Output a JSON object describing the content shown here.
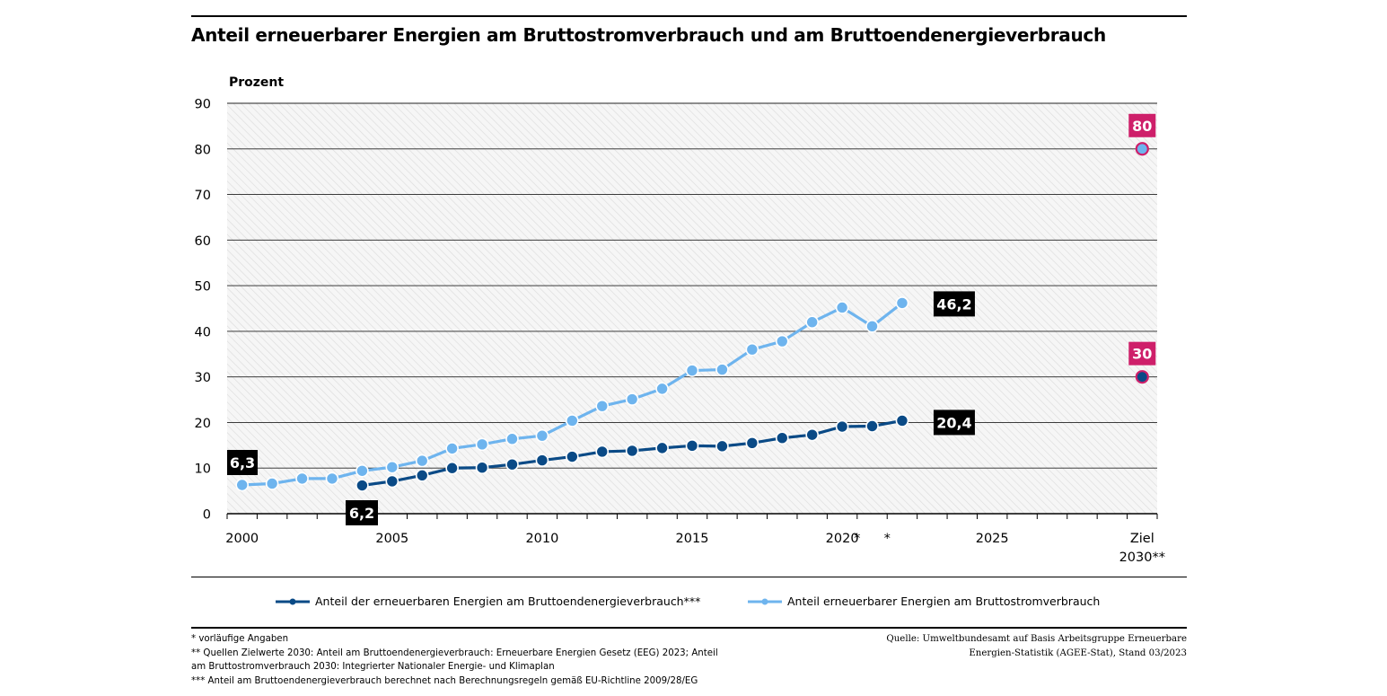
{
  "title": "Anteil erneuerbarer Energien am Bruttostromverbrauch und am Bruttoendenergieverbrauch",
  "colors": {
    "strom": "#6EB4EE",
    "endenergie": "#0A4A86",
    "target": "#CE1F6A",
    "label_box": "#000000"
  },
  "chart_data": {
    "type": "line",
    "ylabel": "Prozent",
    "xlabel": "",
    "ylim": [
      0,
      90
    ],
    "yticks": [
      "0",
      "10",
      "20",
      "30",
      "40",
      "50",
      "60",
      "70",
      "80",
      "90"
    ],
    "x_tick_labels": [
      {
        "x": 2000,
        "label": "2000"
      },
      {
        "x": 2005,
        "label": "2005"
      },
      {
        "x": 2010,
        "label": "2010"
      },
      {
        "x": 2015,
        "label": "2015"
      },
      {
        "x": 2020,
        "label": "2020"
      },
      {
        "x": 2020.5,
        "label": "*"
      },
      {
        "x": 2021.5,
        "label": "*"
      },
      {
        "x": 2025,
        "label": "2025"
      },
      {
        "x": 2030,
        "label": "Ziel\n2030**"
      }
    ],
    "series": [
      {
        "name": "Anteil erneuerbarer Energien am Bruttostromverbrauch",
        "color": "#6EB4EE",
        "x": [
          2000,
          2001,
          2002,
          2003,
          2004,
          2005,
          2006,
          2007,
          2008,
          2009,
          2010,
          2011,
          2012,
          2013,
          2014,
          2015,
          2016,
          2017,
          2018,
          2019,
          2020,
          2021,
          2022
        ],
        "y": [
          6.3,
          6.6,
          7.7,
          7.7,
          9.4,
          10.2,
          11.6,
          14.3,
          15.2,
          16.4,
          17.1,
          20.4,
          23.6,
          25.1,
          27.4,
          31.4,
          31.6,
          36.0,
          37.8,
          42.0,
          45.2,
          41.1,
          46.2
        ],
        "end_label": "46,2",
        "start_label": "6,3"
      },
      {
        "name": "Anteil der erneuerbaren Energien am Bruttoendenergieverbrauch***",
        "color": "#0A4A86",
        "x": [
          2004,
          2005,
          2006,
          2007,
          2008,
          2009,
          2010,
          2011,
          2012,
          2013,
          2014,
          2015,
          2016,
          2017,
          2018,
          2019,
          2020,
          2021,
          2022
        ],
        "y": [
          6.2,
          7.1,
          8.4,
          10.0,
          10.1,
          10.8,
          11.7,
          12.5,
          13.6,
          13.8,
          14.4,
          14.9,
          14.8,
          15.5,
          16.6,
          17.3,
          19.1,
          19.2,
          20.4
        ],
        "end_label": "20,4",
        "start_label": "6,2"
      }
    ],
    "targets": [
      {
        "series": "Anteil erneuerbarer Energien am Bruttostromverbrauch",
        "x": 2030,
        "y": 80,
        "label": "80"
      },
      {
        "series": "Anteil der erneuerbaren Energien am Bruttoendenergieverbrauch***",
        "x": 2030,
        "y": 30,
        "label": "30"
      }
    ],
    "grid": true,
    "legend_position": "bottom"
  },
  "legend": {
    "endenergie": "Anteil der erneuerbaren Energien am Bruttoendenergieverbrauch***",
    "strom": "Anteil erneuerbarer Energien am Bruttostromverbrauch"
  },
  "footnotes": {
    "line1": "* vorläufige Angaben",
    "line2": "** Quellen Zielwerte 2030: Anteil am Bruttoendenergieverbrauch: Erneuerbare Energien Gesetz (EEG) 2023; Anteil",
    "line3": "am Bruttostromverbrauch 2030: Integrierter Nationaler Energie- und Klimaplan",
    "line4": "*** Anteil am Bruttoendenergieverbrauch berechnet nach Berechnungsregeln gemäß EU-Richtline 2009/28/EG"
  },
  "source": {
    "line1": "Quelle: Umweltbundesamt auf Basis Arbeitsgruppe Erneuerbare",
    "line2": "Energien-Statistik (AGEE-Stat), Stand 03/2023"
  }
}
